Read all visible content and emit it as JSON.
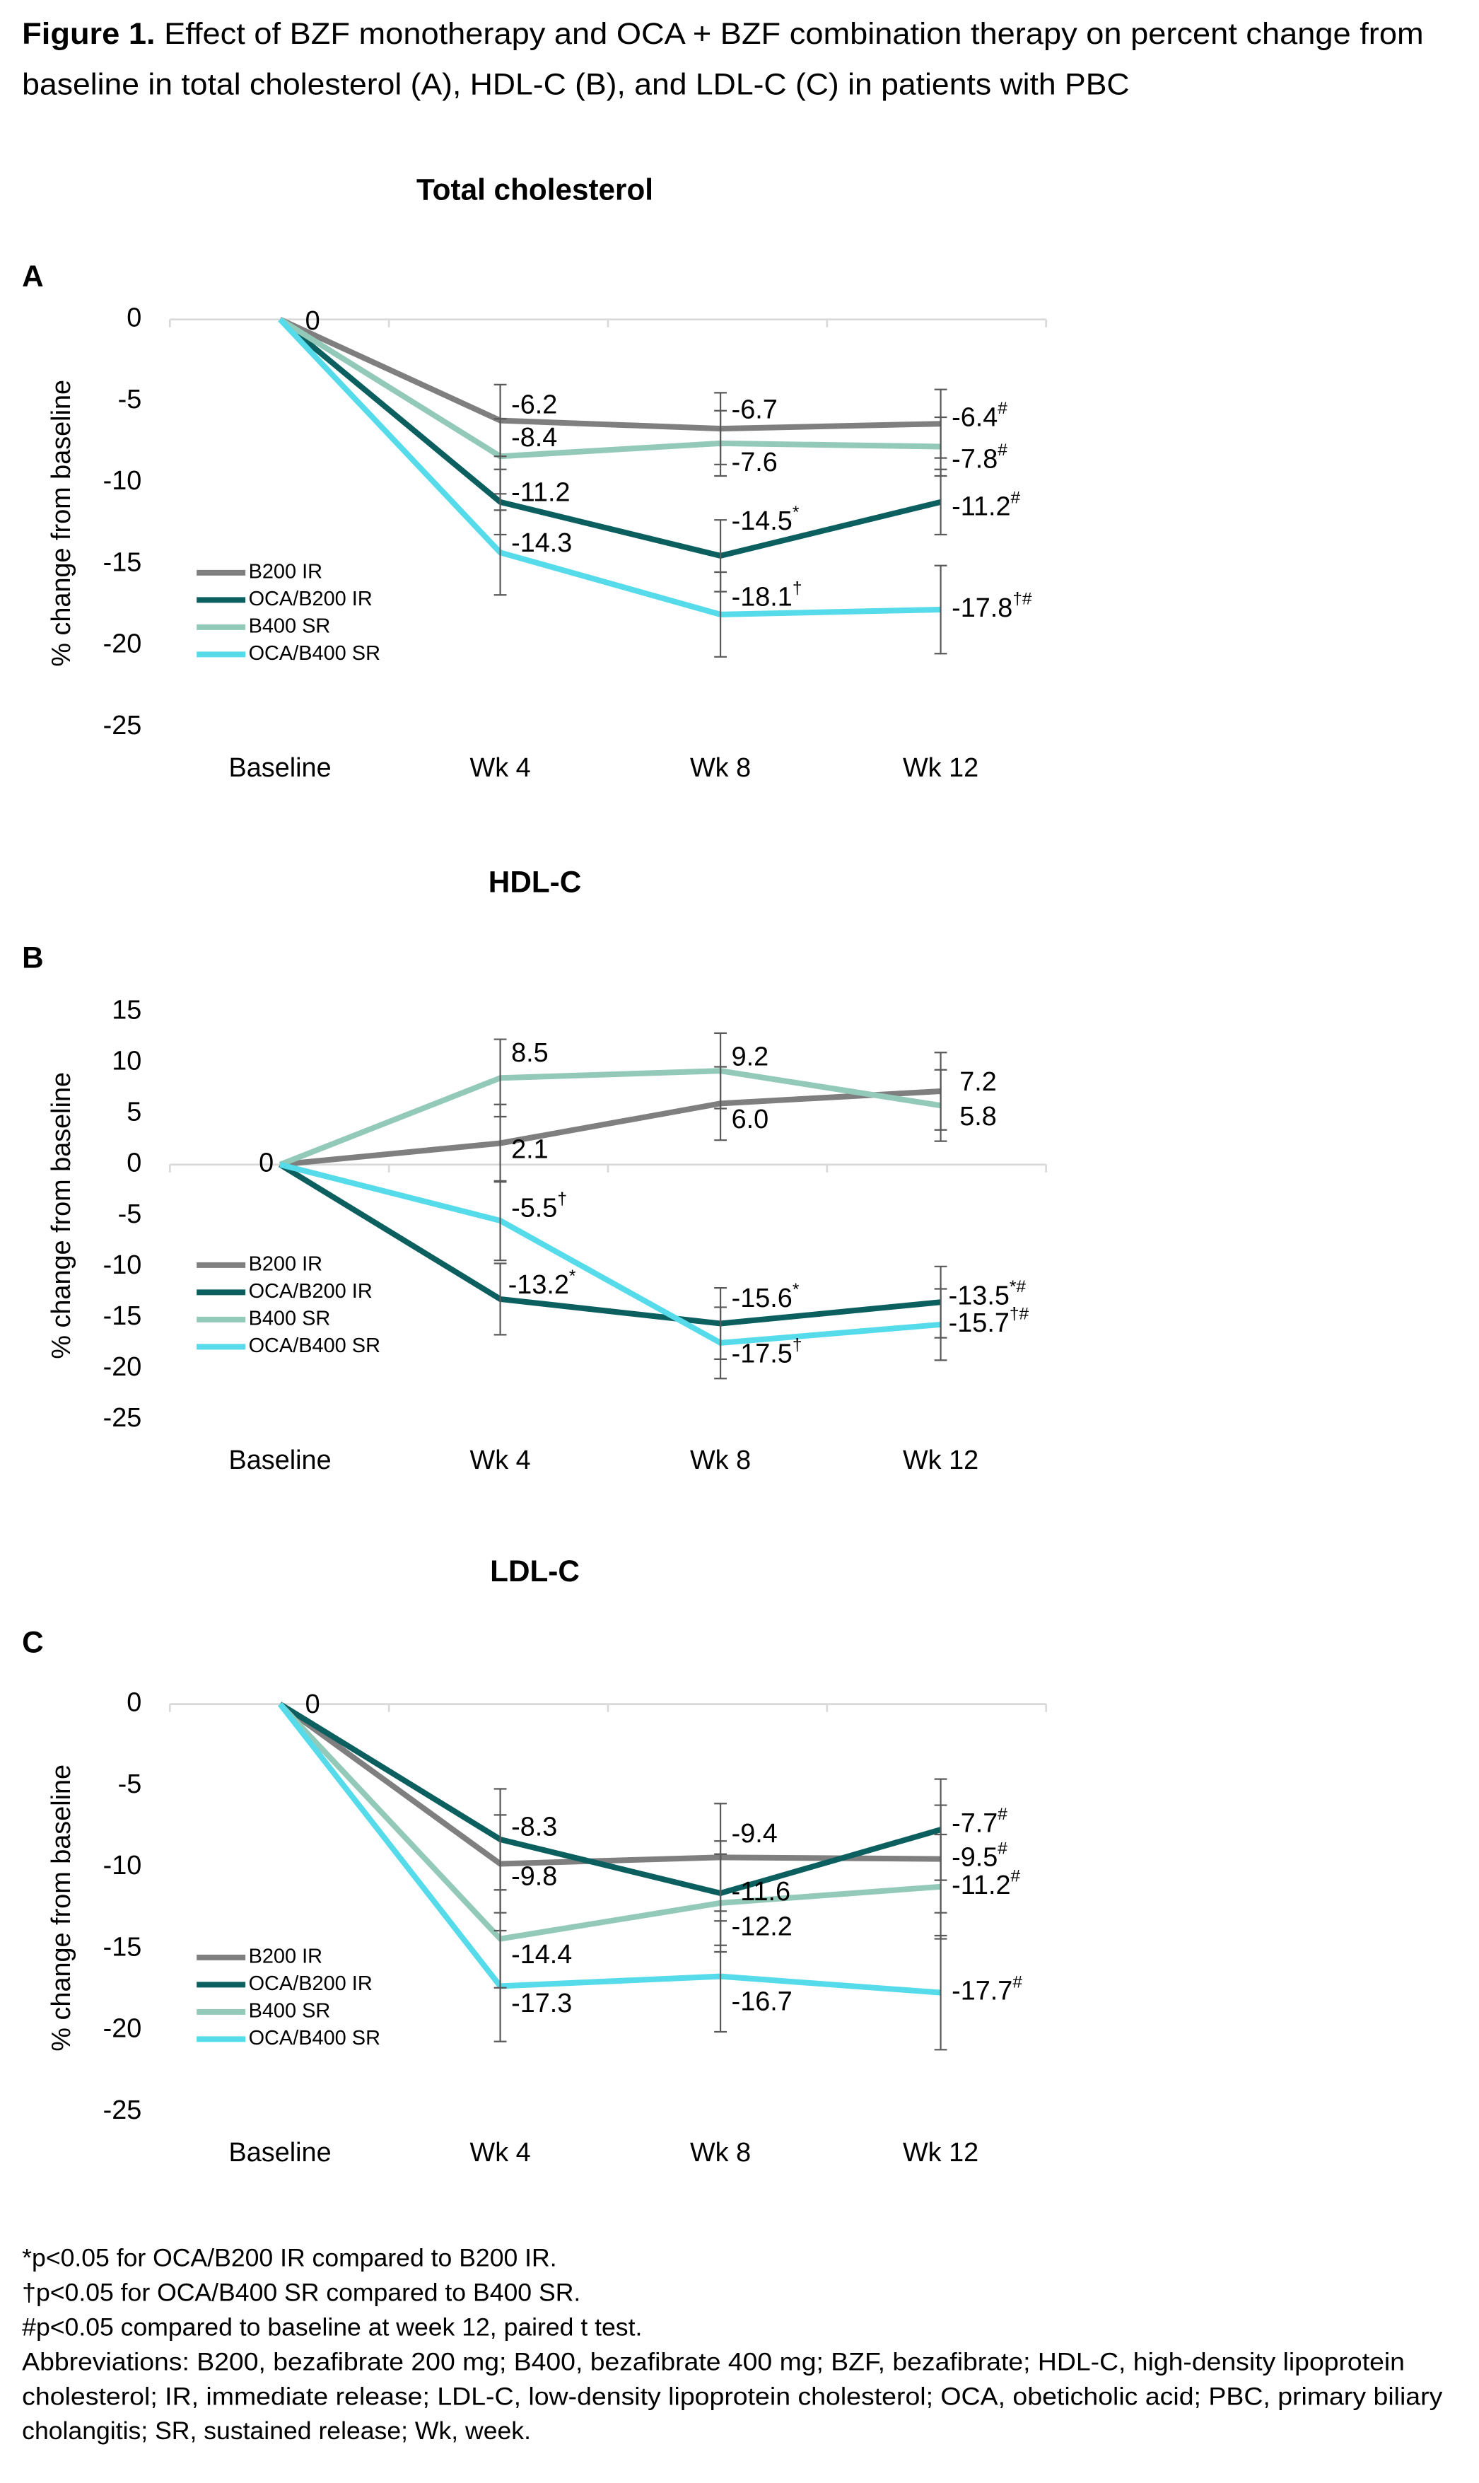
{
  "figure": {
    "caption": {
      "label": "Figure 1.",
      "lines": [
        "Effect of BZF monotherapy and OCA + BZF combination therapy on percent change from",
        "baseline in total cholesterol (A), HDL-C (B), and LDL-C (C) in patients with PBC"
      ]
    },
    "footnotes": [
      "*p<0.05 for OCA/B200 IR compared to B200 IR.",
      "†p<0.05 for OCA/B400 SR compared to B400 SR.",
      "#p<0.05 compared to baseline at week 12, paired t test.",
      "Abbreviations: B200, bezafibrate 200 mg; B400, bezafibrate 400 mg; BZF, bezafibrate; HDL-C, high-density lipoprotein",
      "cholesterol; IR, immediate release; LDL-C, low-density lipoprotein cholesterol; OCA, obeticholic acid; PBC, primary biliary",
      "cholangitis; SR, sustained release; Wk, week."
    ]
  },
  "chart_data": [
    {
      "type": "line",
      "panel": "A",
      "title": "Total cholesterol",
      "y_label": "% change from baseline",
      "categories": [
        "Baseline",
        "Wk 4",
        "Wk 8",
        "Wk 12"
      ],
      "ylim": [
        -25,
        0
      ],
      "yticks": [
        0,
        -5,
        -10,
        -15,
        -20,
        -25
      ],
      "legend": "lower left",
      "series": [
        {
          "name": "B200 IR",
          "color": "#7f7f7f",
          "values": [
            0,
            -6.2,
            -6.7,
            -6.4
          ],
          "errors": [
            null,
            2.2,
            2.2,
            2.1
          ],
          "value_labels": [
            "0",
            "-6.2",
            "-6.7",
            "-6.4#"
          ]
        },
        {
          "name": "OCA/B200 IR",
          "color": "#0b5f5f",
          "values": [
            0,
            -11.2,
            -14.5,
            -11.2
          ],
          "errors": [
            null,
            2.0,
            2.2,
            2.0
          ],
          "value_labels": [
            null,
            "-11.2",
            "-14.5*",
            "-11.2#"
          ]
        },
        {
          "name": "B400 SR",
          "color": "#93c9b8",
          "values": [
            0,
            -8.4,
            -7.6,
            -7.8
          ],
          "errors": [
            null,
            2.3,
            2.0,
            1.8
          ],
          "value_labels": [
            null,
            "-8.4",
            "-7.6",
            "-7.8#"
          ]
        },
        {
          "name": "OCA/B400 SR",
          "color": "#55dbe9",
          "values": [
            0,
            -14.3,
            -18.1,
            -17.8
          ],
          "errors": [
            null,
            2.6,
            2.6,
            2.7
          ],
          "value_labels": [
            null,
            "-14.3",
            "-18.1†",
            "-17.8†#"
          ]
        }
      ]
    },
    {
      "type": "line",
      "panel": "B",
      "title": "HDL-C",
      "y_label": "% change from baseline",
      "categories": [
        "Baseline",
        "Wk 4",
        "Wk 8",
        "Wk 12"
      ],
      "ylim": [
        -25,
        15
      ],
      "yticks": [
        15,
        10,
        5,
        0,
        -5,
        -10,
        -15,
        -20,
        -25
      ],
      "legend": "lower left",
      "series": [
        {
          "name": "B200 IR",
          "color": "#7f7f7f",
          "values": [
            0,
            2.1,
            6.0,
            7.2
          ],
          "errors": [
            null,
            3.8,
            3.6,
            3.8
          ],
          "value_labels": [
            "0",
            "2.1",
            "6.0",
            "7.2"
          ]
        },
        {
          "name": "OCA/B200 IR",
          "color": "#0b5f5f",
          "values": [
            0,
            -13.2,
            -15.6,
            -13.5
          ],
          "errors": [
            null,
            3.5,
            3.5,
            3.5
          ],
          "value_labels": [
            null,
            "-13.2*",
            "-15.6*",
            "-13.5*#"
          ]
        },
        {
          "name": "B400 SR",
          "color": "#93c9b8",
          "values": [
            0,
            8.5,
            9.2,
            5.8
          ],
          "errors": [
            null,
            3.8,
            3.7,
            3.5
          ],
          "value_labels": [
            null,
            "8.5",
            "9.2",
            "5.8"
          ]
        },
        {
          "name": "OCA/B400 SR",
          "color": "#55dbe9",
          "values": [
            0,
            -5.5,
            -17.5,
            -15.7
          ],
          "errors": [
            null,
            3.9,
            3.5,
            3.5
          ],
          "value_labels": [
            null,
            "-5.5†",
            "-17.5†",
            "-15.7†#"
          ]
        }
      ]
    },
    {
      "type": "line",
      "panel": "C",
      "title": "LDL-C",
      "y_label": "% change from baseline",
      "categories": [
        "Baseline",
        "Wk 4",
        "Wk 8",
        "Wk 12"
      ],
      "ylim": [
        -25,
        0
      ],
      "yticks": [
        0,
        -5,
        -10,
        -15,
        -20,
        -25
      ],
      "legend": "lower left",
      "series": [
        {
          "name": "B200 IR",
          "color": "#7f7f7f",
          "values": [
            0,
            -9.8,
            -9.4,
            -9.5
          ],
          "errors": [
            null,
            3.0,
            3.3,
            3.3
          ],
          "value_labels": [
            "0",
            "-9.8",
            "-9.4",
            "-9.5#"
          ]
        },
        {
          "name": "OCA/B200 IR",
          "color": "#0b5f5f",
          "values": [
            0,
            -8.3,
            -11.6,
            -7.7
          ],
          "errors": [
            null,
            3.1,
            3.2,
            3.1
          ],
          "value_labels": [
            null,
            "-8.3",
            "-11.6",
            "-7.7#"
          ]
        },
        {
          "name": "B400 SR",
          "color": "#93c9b8",
          "values": [
            0,
            -14.4,
            -12.2,
            -11.2
          ],
          "errors": [
            null,
            3.0,
            3.0,
            3.2
          ],
          "value_labels": [
            null,
            "-14.4",
            "-12.2",
            "-11.2#"
          ]
        },
        {
          "name": "OCA/B400 SR",
          "color": "#55dbe9",
          "values": [
            0,
            -17.3,
            -16.7,
            -17.7
          ],
          "errors": [
            null,
            3.4,
            3.4,
            3.5
          ],
          "value_labels": [
            null,
            "-17.3",
            "-16.7",
            "-17.7#"
          ]
        }
      ]
    }
  ]
}
